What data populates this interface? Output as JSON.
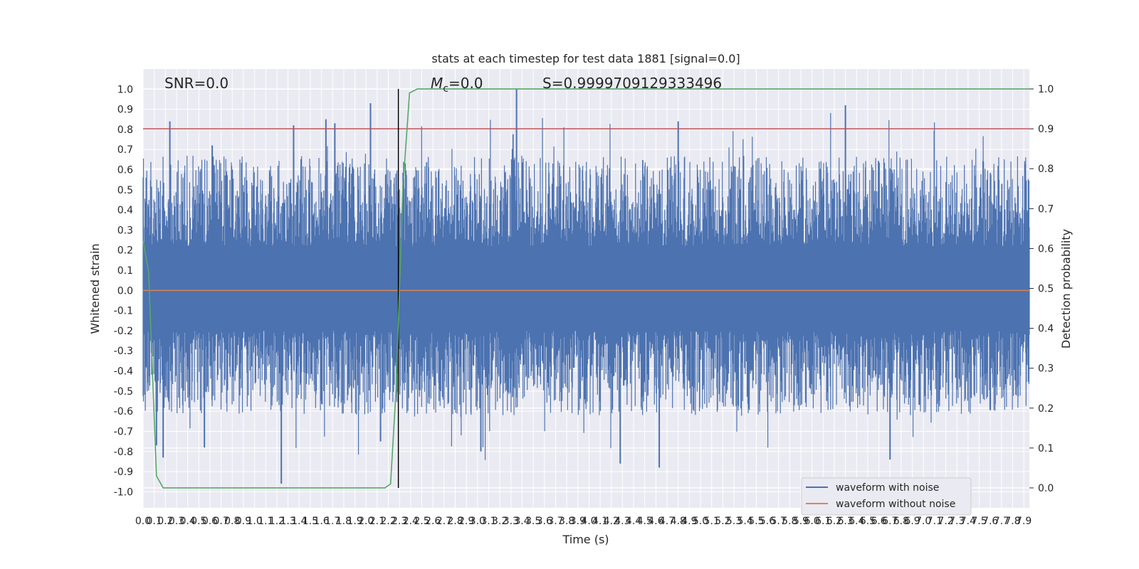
{
  "chart_data": {
    "type": "line",
    "title": "stats at each timestep for test data 1881 [signal=0.0]",
    "xlabel": "Time (s)",
    "ylabel": "Whitened strain",
    "y2label": "Detection probability",
    "xlim": [
      0.0,
      7.95
    ],
    "ylim": [
      -1.08,
      1.1
    ],
    "y2lim": [
      -0.05,
      1.05
    ],
    "x_ticks": [
      0.0,
      0.1,
      0.2,
      0.3,
      0.4,
      0.5,
      0.6,
      0.7,
      0.8,
      0.9,
      1.0,
      1.1,
      1.2,
      1.3,
      1.4,
      1.5,
      1.6,
      1.7,
      1.8,
      1.9,
      2.0,
      2.1,
      2.2,
      2.3,
      2.4,
      2.5,
      2.6,
      2.7,
      2.8,
      2.9,
      3.0,
      3.1,
      3.2,
      3.3,
      3.4,
      3.5,
      3.6,
      3.7,
      3.8,
      3.9,
      4.0,
      4.1,
      4.2,
      4.3,
      4.4,
      4.5,
      4.6,
      4.7,
      4.8,
      4.9,
      5.0,
      5.1,
      5.2,
      5.3,
      5.4,
      5.5,
      5.6,
      5.7,
      5.8,
      5.9,
      6.0,
      6.1,
      6.2,
      6.3,
      6.4,
      6.5,
      6.6,
      6.7,
      6.8,
      6.9,
      7.0,
      7.1,
      7.2,
      7.3,
      7.4,
      7.5,
      7.6,
      7.7,
      7.8,
      7.9
    ],
    "y_ticks": [
      1.0,
      0.9,
      0.8,
      0.7,
      0.6,
      0.5,
      0.4,
      0.3,
      0.2,
      0.1,
      0.0,
      -0.1,
      -0.2,
      -0.3,
      -0.4,
      -0.5,
      -0.6,
      -0.7,
      -0.8,
      -0.9,
      -1.0
    ],
    "y2_ticks": [
      0.0,
      0.1,
      0.2,
      0.3,
      0.4,
      0.5,
      0.6,
      0.7,
      0.8,
      0.9,
      1.0
    ],
    "annotations": [
      {
        "text": "SNR=0.0"
      },
      {
        "text": "Mc=0.0"
      },
      {
        "text": "S=0.9999709129333496"
      }
    ],
    "legend_position": "lower-right",
    "grid": true,
    "threshold_y2": 0.9,
    "vline_x": 2.29,
    "series": [
      {
        "name": "waveform with noise",
        "color": "#4c72b0",
        "note": "dense noise samples roughly in [-0.95, 1.0]",
        "peaks_x": [
          0.24,
          0.62,
          1.35,
          1.64,
          1.72,
          2.04,
          3.35,
          4.8,
          6.3
        ],
        "peaks_y": [
          0.84,
          0.72,
          0.82,
          0.85,
          0.83,
          0.93,
          1.0,
          0.84,
          0.92
        ],
        "troughs_x": [
          0.12,
          0.18,
          0.55,
          1.24,
          2.13,
          3.03,
          4.28,
          4.63,
          6.7
        ],
        "troughs_y": [
          -0.77,
          -0.83,
          -0.78,
          -0.96,
          -0.75,
          -0.8,
          -0.86,
          -0.88,
          -0.84
        ]
      },
      {
        "name": "waveform without noise",
        "color": "#dd8452",
        "x": [
          0.0,
          7.95
        ],
        "y": [
          0.0,
          0.0
        ]
      },
      {
        "name": "Detection probability",
        "color": "#55a868",
        "x": [
          0.0,
          0.05,
          0.12,
          0.18,
          2.17,
          2.22,
          2.27,
          2.33,
          2.39,
          2.46,
          2.6,
          7.95
        ],
        "y": [
          0.62,
          0.54,
          0.03,
          0.0,
          0.0,
          0.01,
          0.25,
          0.75,
          0.99,
          1.0,
          1.0,
          1.0
        ]
      }
    ]
  }
}
